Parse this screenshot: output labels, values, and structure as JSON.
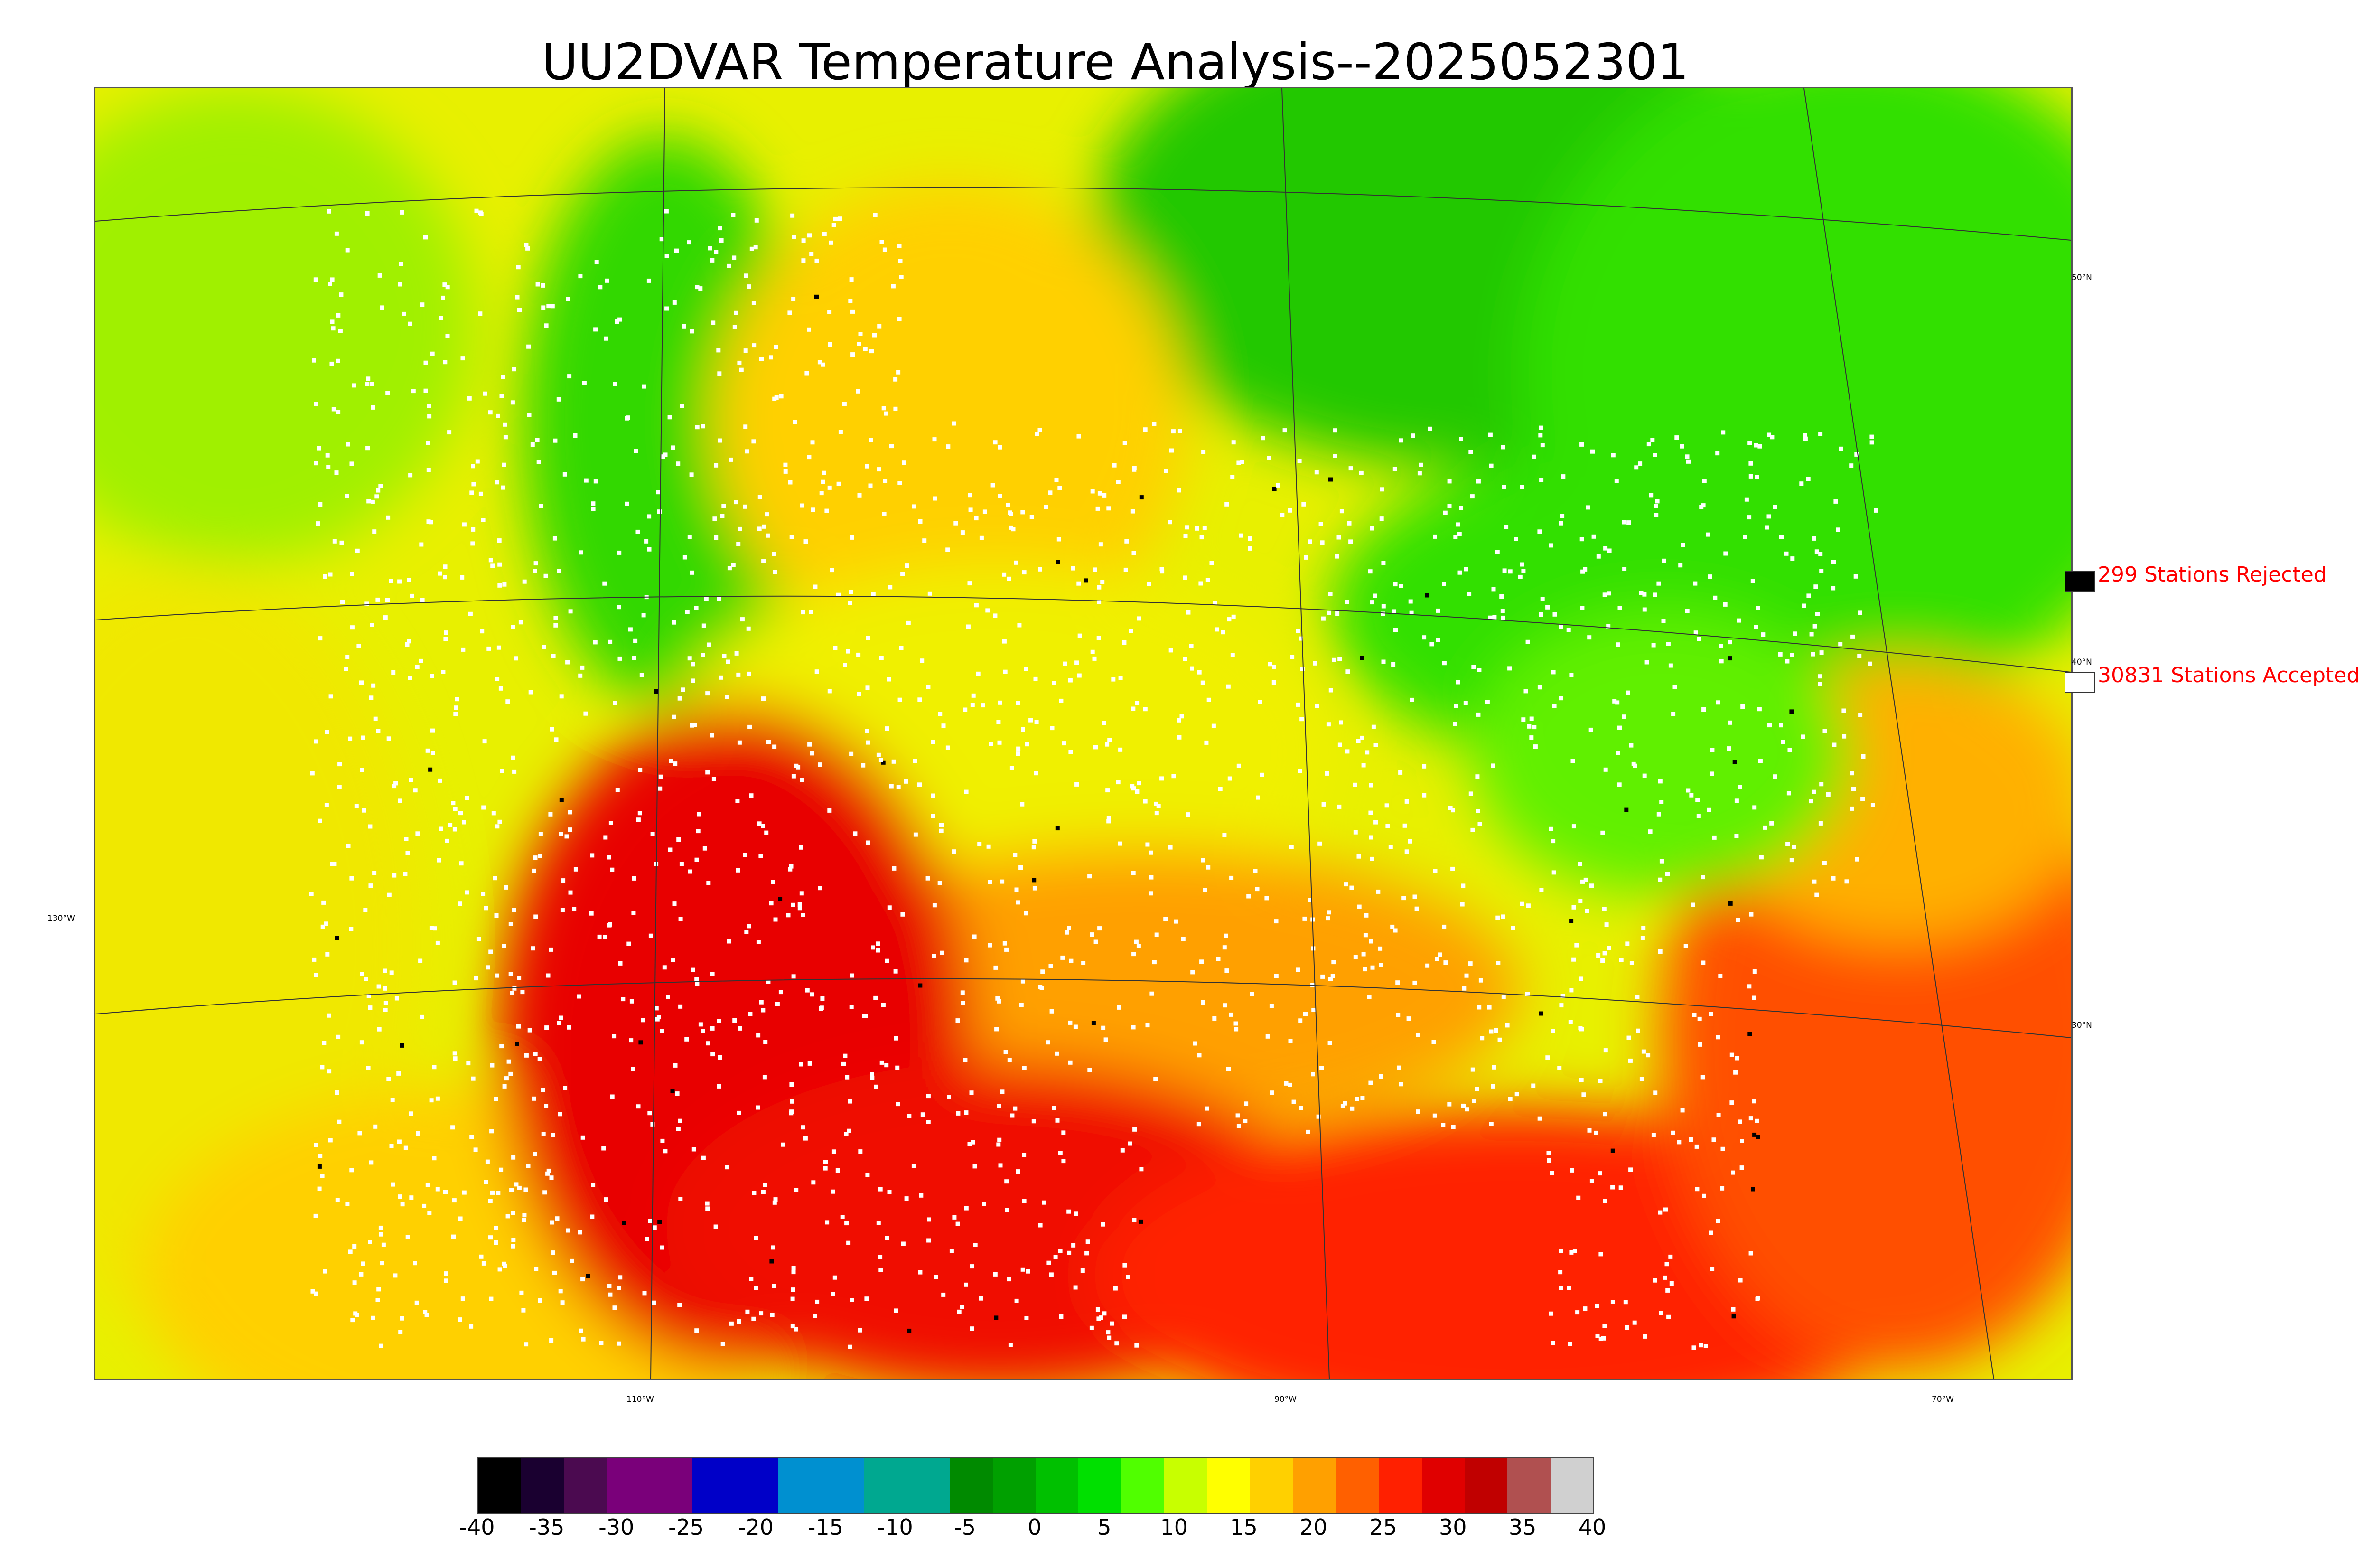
{
  "title": "UU2DVAR Temperature Analysis--2025052301",
  "legend": {
    "rejected": {
      "label": "299 Stations Rejected",
      "swatch_color": "#000000"
    },
    "accepted": {
      "label": "30831 Stations Accepted",
      "swatch_color": "#ffffff"
    },
    "text_color": "#ff0000"
  },
  "longitude_labels": [
    "130°W",
    "110°W",
    "90°W",
    "70°W"
  ],
  "latitude_labels": [
    "50°N",
    "40°N",
    "30°N"
  ],
  "colorbar": {
    "ticks": [
      "-40",
      "-35",
      "-30",
      "-25",
      "-20",
      "-15",
      "-10",
      "-5",
      "0",
      "5",
      "10",
      "15",
      "20",
      "25",
      "30",
      "35",
      "40"
    ],
    "min": -40,
    "max": 40,
    "colors": [
      "#000000",
      "#1a0030",
      "#4b0a50",
      "#7a007a",
      "#7a007a",
      "#0000c8",
      "#0000c8",
      "#0090d0",
      "#0090d0",
      "#00a890",
      "#00a890",
      "#008a00",
      "#00a000",
      "#00c000",
      "#00e000",
      "#50ff00",
      "#c8ff00",
      "#ffff00",
      "#ffd000",
      "#ffa000",
      "#ff6000",
      "#ff2000",
      "#e00000",
      "#c00000",
      "#b05050",
      "#d0d0d0"
    ]
  },
  "colors": {
    "cold": "#00c800",
    "cool": "#c8f000",
    "warm": "#ffc000",
    "hot": "#f00000",
    "ocean_warm": "#ff3000"
  }
}
